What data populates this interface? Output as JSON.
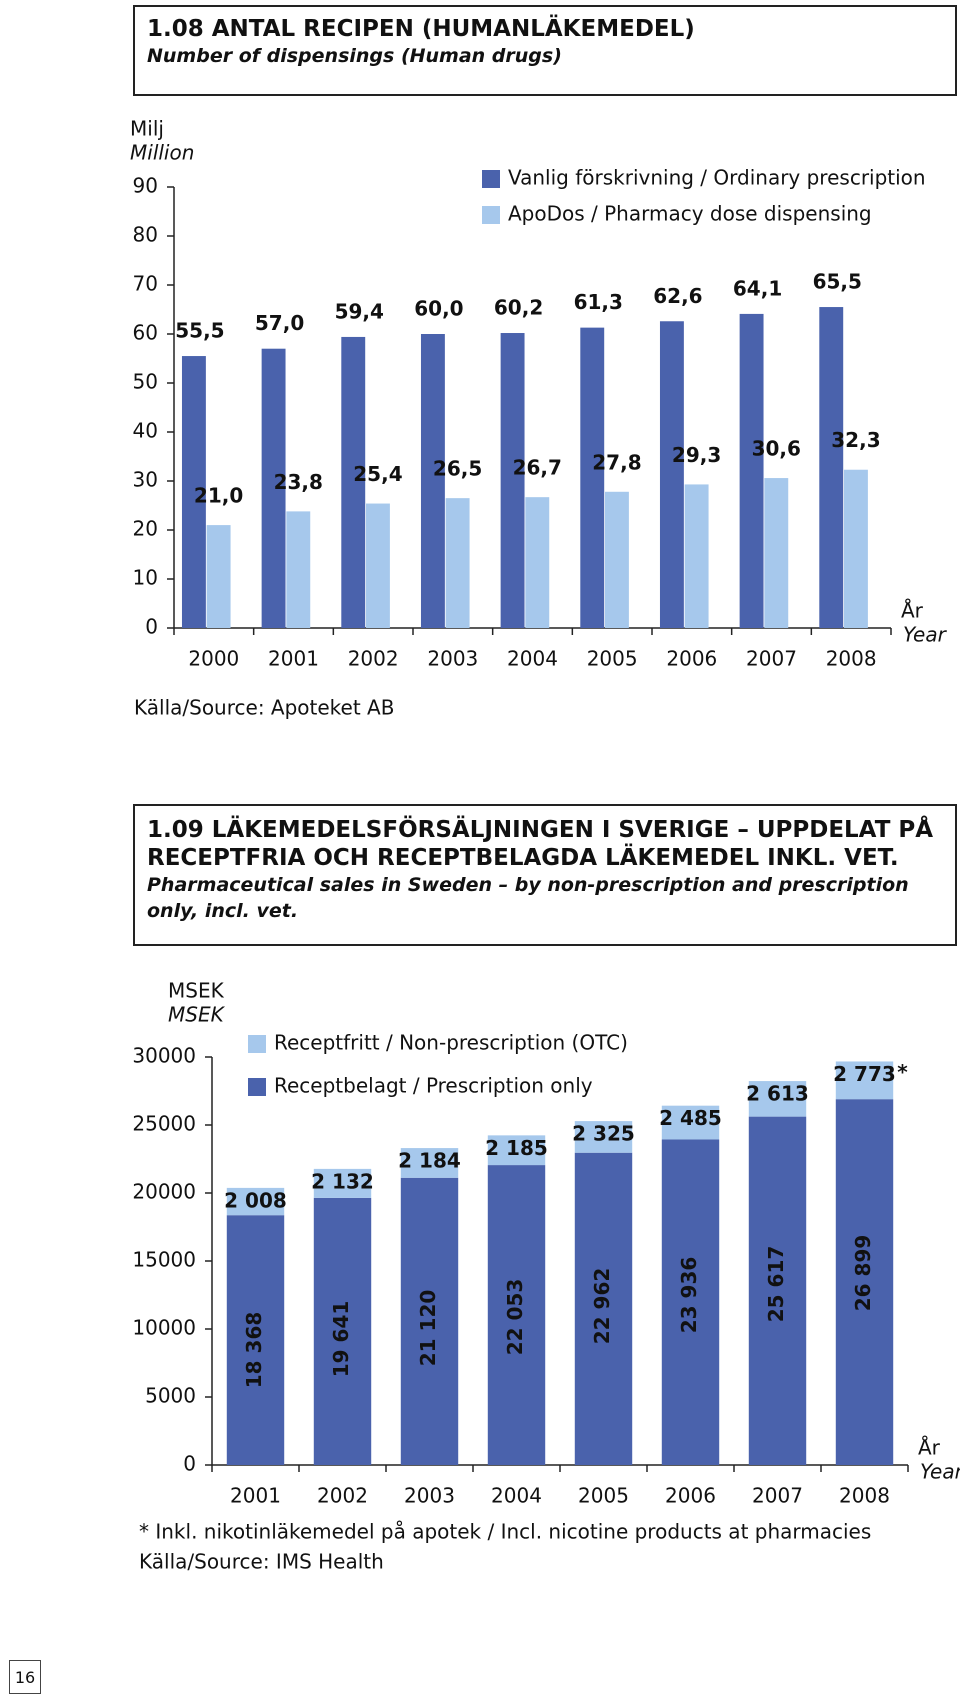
{
  "chart_data": [
    {
      "type": "bar",
      "title": "1.08 ANTAL RECIPEN (HUMANLÄKEMEDEL)",
      "subtitle": "Number of dispensings (Human drugs)",
      "y_label": "Milj",
      "y_label_en": "Million",
      "x_label": "År",
      "x_label_en": "Year",
      "source": "Källa/Source: Apoteket AB",
      "categories": [
        "2000",
        "2001",
        "2002",
        "2003",
        "2004",
        "2005",
        "2006",
        "2007",
        "2008"
      ],
      "series": [
        {
          "name": "Vanlig förskrivning / Ordinary prescription",
          "color": "#4a62ac",
          "values": [
            55.5,
            57.0,
            59.4,
            60.0,
            60.2,
            61.3,
            62.6,
            64.1,
            65.5
          ],
          "value_labels": [
            "55,5",
            "57,0",
            "59,4",
            "60,0",
            "60,2",
            "61,3",
            "62,6",
            "64,1",
            "65,5"
          ]
        },
        {
          "name": "ApoDos / Pharmacy dose dispensing",
          "color": "#a6c8ec",
          "values": [
            21.0,
            23.8,
            25.4,
            26.5,
            26.7,
            27.8,
            29.3,
            30.6,
            32.3
          ],
          "value_labels": [
            "21,0",
            "23,8",
            "25,4",
            "26,5",
            "26,7",
            "27,8",
            "29,3",
            "30,6",
            "32,3"
          ]
        }
      ],
      "ylim": [
        0,
        90
      ],
      "yticks": [
        0,
        10,
        20,
        30,
        40,
        50,
        60,
        70,
        80,
        90
      ],
      "grid": false
    },
    {
      "type": "stacked_bar",
      "title": "1.09 LÄKEMEDELSFÖRSÄLJNINGEN I SVERIGE – UPPDELAT PÅ RECEPTFRIA OCH RECEPTBELAGDA LÄKEMEDEL INKL. VET.",
      "subtitle": "Pharmaceutical sales in Sweden – by non-prescription and prescription only, incl. vet.",
      "y_label": "MSEK",
      "y_label_en": "MSEK",
      "x_label": "År",
      "x_label_en": "Year",
      "annotation": "*",
      "footnote": "* Inkl. nikotinläkemedel på apotek / Incl. nicotine products at pharmacies",
      "source": "Källa/Source: IMS Health",
      "categories": [
        "2001",
        "2002",
        "2003",
        "2004",
        "2005",
        "2006",
        "2007",
        "2008"
      ],
      "series": [
        {
          "name": "Receptbelagt / Prescription only",
          "color": "#4a62ac",
          "values": [
            18368,
            19641,
            21120,
            22053,
            22962,
            23936,
            25617,
            26899
          ],
          "value_labels": [
            "18 368",
            "19 641",
            "21 120",
            "22 053",
            "22 962",
            "23 936",
            "25 617",
            "26 899"
          ]
        },
        {
          "name": "Receptfritt / Non-prescription (OTC)",
          "color": "#a6c8ec",
          "values": [
            2008,
            2132,
            2184,
            2185,
            2325,
            2485,
            2613,
            2773
          ],
          "value_labels": [
            "2 008",
            "2 132",
            "2 184",
            "2 185",
            "2 325",
            "2 485",
            "2 613",
            "2 773"
          ]
        }
      ],
      "ylim": [
        0,
        30000
      ],
      "yticks": [
        0,
        5000,
        10000,
        15000,
        20000,
        25000,
        30000
      ],
      "grid": false
    }
  ],
  "page_number": "16"
}
